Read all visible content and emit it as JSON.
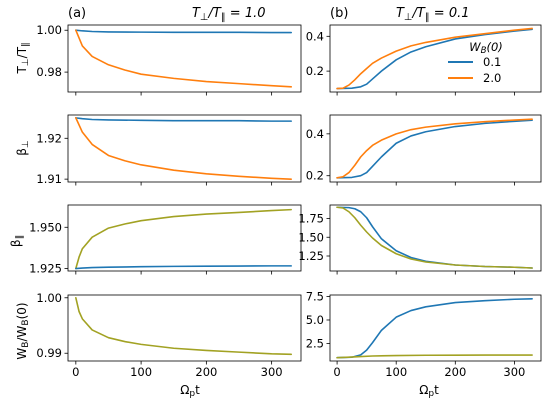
{
  "figure": {
    "panel_labels": [
      "(a)",
      "(b)"
    ],
    "column_titles": [
      "T⊥/T∥ = 1.0",
      "T⊥/T∥ = 0.1"
    ],
    "xlabel": "Ωpt",
    "row_ylabels": [
      "T⊥/T∥",
      "β⊥",
      "β∥",
      "WB/WB(0)"
    ],
    "legend": {
      "title": "WB(0)",
      "entries": [
        "0.1",
        "2.0"
      ]
    },
    "colors": {
      "blue": "#1f77b4",
      "orange": "#ff7f0e",
      "olive": "#a2a223"
    }
  },
  "chart_data": [
    {
      "type": "line",
      "panel": "(a) row 1",
      "ylabel": "T⊥/T∥",
      "xlim": [
        -12,
        345
      ],
      "ylim": [
        0.9705,
        1.0025
      ],
      "xticks": [
        0,
        100,
        200,
        300
      ],
      "yticks": [
        0.98,
        1.0
      ],
      "ytick_labels": [
        "0.98",
        "1.00"
      ],
      "series": [
        {
          "color": "blue",
          "x": [
            0,
            10,
            25,
            50,
            100,
            150,
            200,
            250,
            300,
            330
          ],
          "y": [
            1.0,
            0.9997,
            0.9994,
            0.9992,
            0.9991,
            0.999,
            0.999,
            0.999,
            0.9989,
            0.9989
          ]
        },
        {
          "color": "orange",
          "x": [
            0,
            10,
            25,
            50,
            75,
            100,
            150,
            200,
            250,
            300,
            330
          ],
          "y": [
            1.0,
            0.9925,
            0.9875,
            0.9835,
            0.981,
            0.979,
            0.977,
            0.9755,
            0.9745,
            0.9735,
            0.973
          ]
        }
      ]
    },
    {
      "type": "line",
      "panel": "(a) row 2",
      "ylabel": "β⊥",
      "xlim": [
        -12,
        345
      ],
      "ylim": [
        1.9093,
        1.9257
      ],
      "xticks": [
        0,
        100,
        200,
        300
      ],
      "yticks": [
        1.91,
        1.92
      ],
      "ytick_labels": [
        "1.91",
        "1.92"
      ],
      "series": [
        {
          "color": "blue",
          "x": [
            0,
            10,
            25,
            50,
            100,
            150,
            200,
            250,
            300,
            330
          ],
          "y": [
            1.925,
            1.9248,
            1.9246,
            1.9245,
            1.9244,
            1.9243,
            1.9243,
            1.9243,
            1.9242,
            1.9242
          ]
        },
        {
          "color": "orange",
          "x": [
            0,
            10,
            25,
            50,
            75,
            100,
            150,
            200,
            250,
            300,
            330
          ],
          "y": [
            1.925,
            1.9215,
            1.9185,
            1.9158,
            1.9145,
            1.9135,
            1.9122,
            1.9113,
            1.9107,
            1.9102,
            1.91
          ]
        }
      ]
    },
    {
      "type": "line",
      "panel": "(a) row 3",
      "ylabel": "β∥",
      "xlim": [
        -12,
        345
      ],
      "ylim": [
        1.9235,
        1.9635
      ],
      "xticks": [
        0,
        100,
        200,
        300
      ],
      "yticks": [
        1.925,
        1.95
      ],
      "ytick_labels": [
        "1.925",
        "1.950"
      ],
      "series": [
        {
          "color": "olive",
          "x": [
            0,
            5,
            10,
            25,
            50,
            75,
            100,
            150,
            200,
            250,
            300,
            330
          ],
          "y": [
            1.925,
            1.932,
            1.937,
            1.944,
            1.9495,
            1.952,
            1.954,
            1.9565,
            1.958,
            1.959,
            1.9601,
            1.9607
          ]
        },
        {
          "color": "blue",
          "x": [
            0,
            10,
            25,
            50,
            100,
            150,
            200,
            250,
            300,
            330
          ],
          "y": [
            1.925,
            1.9253,
            1.9256,
            1.9258,
            1.9261,
            1.9263,
            1.9264,
            1.9265,
            1.9266,
            1.9266
          ]
        }
      ]
    },
    {
      "type": "line",
      "panel": "(a) row 4",
      "ylabel": "WB/WB(0)",
      "xlim": [
        -12,
        345
      ],
      "ylim": [
        0.9886,
        1.0005
      ],
      "xticks": [
        0,
        100,
        200,
        300
      ],
      "xtick_labels": [
        "0",
        "100",
        "200",
        "300"
      ],
      "yticks": [
        0.99,
        1.0
      ],
      "ytick_labels": [
        "0.99",
        "1.00"
      ],
      "series": [
        {
          "color": "olive",
          "x": [
            0,
            5,
            10,
            25,
            50,
            75,
            100,
            150,
            200,
            250,
            300,
            330
          ],
          "y": [
            1.0,
            0.9975,
            0.9962,
            0.9942,
            0.9928,
            0.9921,
            0.9916,
            0.9909,
            0.9905,
            0.9902,
            0.9899,
            0.9898
          ]
        }
      ]
    },
    {
      "type": "line",
      "panel": "(b) row 1",
      "xlim": [
        -12,
        345
      ],
      "ylim": [
        0.08,
        0.465
      ],
      "xticks": [
        0,
        100,
        200,
        300
      ],
      "yticks": [
        0.2,
        0.4
      ],
      "ytick_labels": [
        "0.2",
        "0.4"
      ],
      "series": [
        {
          "color": "blue",
          "x": [
            0,
            25,
            40,
            50,
            60,
            75,
            100,
            125,
            150,
            200,
            250,
            300,
            330
          ],
          "y": [
            0.1,
            0.102,
            0.11,
            0.125,
            0.155,
            0.2,
            0.265,
            0.31,
            0.34,
            0.385,
            0.41,
            0.43,
            0.44
          ]
        },
        {
          "color": "orange",
          "x": [
            0,
            10,
            20,
            30,
            40,
            50,
            60,
            75,
            100,
            125,
            150,
            200,
            250,
            300,
            330
          ],
          "y": [
            0.1,
            0.102,
            0.12,
            0.15,
            0.185,
            0.215,
            0.245,
            0.275,
            0.315,
            0.345,
            0.365,
            0.395,
            0.415,
            0.435,
            0.445
          ]
        }
      ]
    },
    {
      "type": "line",
      "panel": "(b) row 2",
      "xlim": [
        -12,
        345
      ],
      "ylim": [
        0.17,
        0.49
      ],
      "xticks": [
        0,
        100,
        200,
        300
      ],
      "yticks": [
        0.2,
        0.4
      ],
      "ytick_labels": [
        "0.2",
        "0.4"
      ],
      "series": [
        {
          "color": "blue",
          "x": [
            0,
            25,
            40,
            50,
            60,
            75,
            100,
            125,
            150,
            200,
            250,
            300,
            330
          ],
          "y": [
            0.19,
            0.192,
            0.2,
            0.215,
            0.245,
            0.29,
            0.355,
            0.39,
            0.41,
            0.435,
            0.45,
            0.46,
            0.465
          ]
        },
        {
          "color": "orange",
          "x": [
            0,
            10,
            20,
            30,
            40,
            50,
            60,
            75,
            100,
            125,
            150,
            200,
            250,
            300,
            330
          ],
          "y": [
            0.19,
            0.195,
            0.215,
            0.25,
            0.29,
            0.32,
            0.345,
            0.37,
            0.4,
            0.42,
            0.432,
            0.448,
            0.458,
            0.466,
            0.47
          ]
        }
      ]
    },
    {
      "type": "line",
      "panel": "(b) row 3",
      "xlim": [
        -12,
        345
      ],
      "ylim": [
        1.05,
        1.93
      ],
      "xticks": [
        0,
        100,
        200,
        300
      ],
      "yticks": [
        1.25,
        1.5,
        1.75
      ],
      "ytick_labels": [
        "1.25",
        "1.50",
        "1.75"
      ],
      "series": [
        {
          "color": "blue",
          "x": [
            0,
            20,
            30,
            40,
            50,
            60,
            75,
            100,
            125,
            150,
            200,
            250,
            300,
            330
          ],
          "y": [
            1.9,
            1.895,
            1.88,
            1.84,
            1.76,
            1.64,
            1.48,
            1.32,
            1.23,
            1.18,
            1.13,
            1.11,
            1.1,
            1.09
          ]
        },
        {
          "color": "olive",
          "x": [
            0,
            10,
            20,
            30,
            40,
            50,
            60,
            75,
            100,
            125,
            150,
            200,
            250,
            300,
            330
          ],
          "y": [
            1.9,
            1.89,
            1.84,
            1.76,
            1.66,
            1.57,
            1.49,
            1.39,
            1.28,
            1.21,
            1.17,
            1.13,
            1.11,
            1.1,
            1.09
          ]
        }
      ]
    },
    {
      "type": "line",
      "panel": "(b) row 4",
      "xlim": [
        -12,
        345
      ],
      "ylim": [
        0.65,
        7.65
      ],
      "xticks": [
        0,
        100,
        200,
        300
      ],
      "xtick_labels": [
        "0",
        "100",
        "200",
        "300"
      ],
      "yticks": [
        2.5,
        5.0,
        7.5
      ],
      "ytick_labels": [
        "2.5",
        "5.0",
        "7.5"
      ],
      "series": [
        {
          "color": "blue",
          "x": [
            0,
            25,
            40,
            50,
            60,
            75,
            100,
            125,
            150,
            200,
            250,
            300,
            330
          ],
          "y": [
            1.0,
            1.05,
            1.3,
            1.8,
            2.6,
            3.9,
            5.3,
            6.0,
            6.4,
            6.85,
            7.05,
            7.2,
            7.25
          ]
        },
        {
          "color": "olive",
          "x": [
            0,
            20,
            40,
            60,
            100,
            150,
            200,
            250,
            300,
            330
          ],
          "y": [
            1.0,
            1.05,
            1.12,
            1.18,
            1.23,
            1.26,
            1.27,
            1.28,
            1.28,
            1.28
          ]
        }
      ]
    }
  ]
}
